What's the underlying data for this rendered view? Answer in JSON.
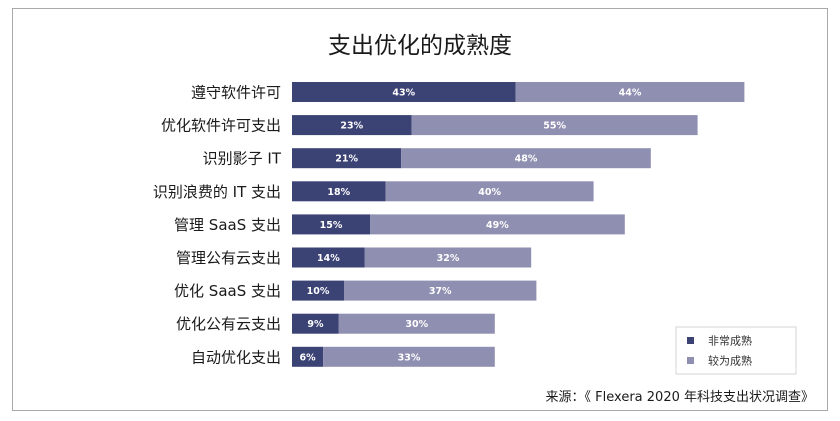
{
  "chart_data": {
    "type": "bar",
    "orientation": "horizontal",
    "stacked": true,
    "title": "支出优化的成熟度",
    "xlabel": "",
    "ylabel": "",
    "grid": false,
    "legend_position": "bottom-right",
    "value_suffix": "%",
    "categories": [
      "遵守软件许可",
      "优化软件许可支出",
      "识别影子 IT",
      "识别浪费的 IT 支出",
      "管理 SaaS 支出",
      "管理公有云支出",
      "优化 SaaS 支出",
      "优化公有云支出",
      "自动优化支出"
    ],
    "series": [
      {
        "name": "非常成熟",
        "color": "#3b4274",
        "values": [
          43,
          23,
          21,
          18,
          15,
          14,
          10,
          9,
          6
        ],
        "labels": [
          "43%",
          "23%",
          "21%",
          "18%",
          "15%",
          "14%",
          "10%",
          "9%",
          "6%"
        ]
      },
      {
        "name": "较为成熟",
        "color": "#8f8fb1",
        "values": [
          44,
          55,
          48,
          40,
          49,
          32,
          37,
          30,
          33
        ],
        "labels": [
          "44%",
          "55%",
          "48%",
          "40%",
          "49%",
          "32%",
          "37%",
          "30%",
          "33%"
        ]
      }
    ],
    "source": "来源：《 Flexera 2020 年科技支出状况调查》"
  }
}
